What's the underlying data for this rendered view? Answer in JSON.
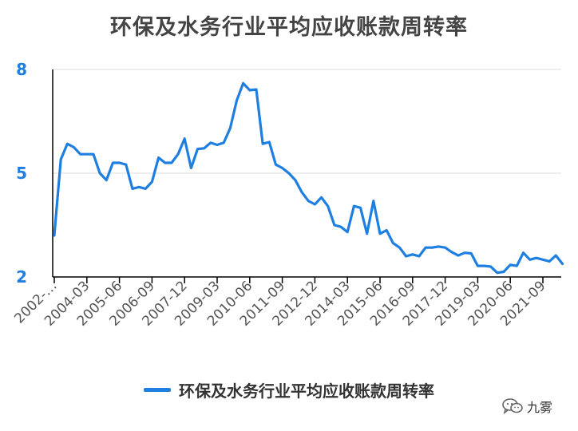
{
  "chart_data": {
    "type": "line",
    "title": "环保及水务行业平均应收账款周转率",
    "xlabel": "",
    "ylabel": "",
    "ylim": [
      2,
      8
    ],
    "yticks": [
      "2",
      "5",
      "8"
    ],
    "grid": true,
    "legend_position": "bottom",
    "x_tick_labels": [
      "2002-…",
      "2004-03",
      "2005-06",
      "2006-09",
      "2007-12",
      "2009-03",
      "2010-06",
      "2011-09",
      "2012-12",
      "2014-03",
      "2015-06",
      "2016-09",
      "2017-12",
      "2019-03",
      "2020-06",
      "2021-09"
    ],
    "series": [
      {
        "name": "环保及水务行业平均应收账款周转率",
        "color": "#1f7fe0",
        "values": [
          3.2,
          5.4,
          5.85,
          5.75,
          5.55,
          5.55,
          5.55,
          5.0,
          4.8,
          5.3,
          5.3,
          5.25,
          4.55,
          4.6,
          4.55,
          4.75,
          5.45,
          5.3,
          5.3,
          5.55,
          6.0,
          5.15,
          5.7,
          5.72,
          5.88,
          5.82,
          5.88,
          6.3,
          7.1,
          7.6,
          7.4,
          7.42,
          5.85,
          5.9,
          5.25,
          5.15,
          5.0,
          4.8,
          4.45,
          4.2,
          4.1,
          4.3,
          4.05,
          3.5,
          3.45,
          3.3,
          4.05,
          4.0,
          3.25,
          4.2,
          3.25,
          3.35,
          2.98,
          2.85,
          2.6,
          2.65,
          2.6,
          2.85,
          2.85,
          2.88,
          2.85,
          2.72,
          2.62,
          2.7,
          2.68,
          2.32,
          2.32,
          2.3,
          2.12,
          2.15,
          2.35,
          2.32,
          2.7,
          2.5,
          2.55,
          2.5,
          2.45,
          2.62,
          2.38
        ]
      }
    ]
  },
  "legend": {
    "label": "环保及水务行业平均应收账款周转率",
    "color": "#1f7fe0"
  },
  "watermark": {
    "text": "九雾",
    "icon": "wechat-icon"
  }
}
